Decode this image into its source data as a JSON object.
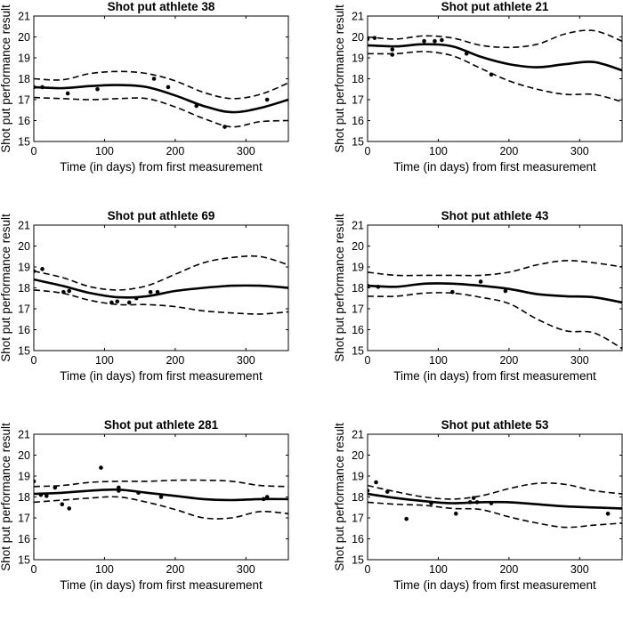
{
  "figure": {
    "layout": "3 rows x 2 columns",
    "colors": {
      "line": "#000000",
      "background": "#ffffff"
    }
  },
  "chart_data": [
    {
      "type": "line",
      "title": "Shot put athlete 38",
      "xlabel": "Time (in days) from first measurement",
      "ylabel": "Shot put performance result",
      "xlim": [
        0,
        360
      ],
      "ylim": [
        15,
        21
      ],
      "xticks": [
        0,
        100,
        200,
        300
      ],
      "yticks": [
        15,
        16,
        17,
        18,
        19,
        20,
        21
      ],
      "x": [
        0,
        40,
        80,
        120,
        160,
        200,
        240,
        280,
        320,
        360
      ],
      "series": [
        {
          "name": "mean",
          "style": "solid",
          "values": [
            17.6,
            17.55,
            17.65,
            17.7,
            17.6,
            17.2,
            16.7,
            16.4,
            16.6,
            17.0
          ]
        },
        {
          "name": "upper",
          "style": "dashed",
          "values": [
            18.0,
            17.95,
            18.25,
            18.35,
            18.25,
            17.9,
            17.35,
            17.05,
            17.25,
            17.8
          ]
        },
        {
          "name": "lower",
          "style": "dashed",
          "values": [
            17.1,
            17.05,
            17.0,
            17.05,
            17.05,
            16.65,
            16.1,
            15.7,
            15.95,
            16.0
          ]
        }
      ],
      "points": [
        [
          0,
          17.6
        ],
        [
          12,
          17.6
        ],
        [
          48,
          17.3
        ],
        [
          90,
          17.5
        ],
        [
          170,
          18.0
        ],
        [
          190,
          17.6
        ],
        [
          230,
          16.7
        ],
        [
          270,
          15.7
        ],
        [
          330,
          17.0
        ]
      ]
    },
    {
      "type": "line",
      "title": "Shot put athlete 21",
      "xlabel": "Time (in days) from first measurement",
      "ylabel": "Shot put performance result",
      "xlim": [
        0,
        360
      ],
      "ylim": [
        15,
        21
      ],
      "xticks": [
        0,
        100,
        200,
        300
      ],
      "yticks": [
        15,
        16,
        17,
        18,
        19,
        20,
        21
      ],
      "x": [
        0,
        40,
        80,
        120,
        160,
        200,
        240,
        280,
        320,
        360
      ],
      "series": [
        {
          "name": "mean",
          "style": "solid",
          "values": [
            19.6,
            19.55,
            19.65,
            19.55,
            19.05,
            18.7,
            18.55,
            18.7,
            18.8,
            18.4
          ]
        },
        {
          "name": "upper",
          "style": "dashed",
          "values": [
            20.0,
            19.9,
            20.05,
            19.95,
            19.6,
            19.5,
            19.65,
            20.15,
            20.3,
            19.8
          ]
        },
        {
          "name": "lower",
          "style": "dashed",
          "values": [
            19.2,
            19.2,
            19.3,
            19.1,
            18.5,
            17.9,
            17.5,
            17.25,
            17.25,
            16.9
          ]
        }
      ],
      "points": [
        [
          0,
          19.9
        ],
        [
          10,
          19.95
        ],
        [
          35,
          19.4
        ],
        [
          35,
          19.15
        ],
        [
          80,
          19.8
        ],
        [
          95,
          19.8
        ],
        [
          105,
          19.85
        ],
        [
          140,
          19.2
        ],
        [
          175,
          18.2
        ]
      ]
    },
    {
      "type": "line",
      "title": "Shot put athlete 69",
      "xlabel": "Time (in days) from first measurement",
      "ylabel": "Shot put performance result",
      "xlim": [
        0,
        360
      ],
      "ylim": [
        15,
        21
      ],
      "xticks": [
        0,
        100,
        200,
        300
      ],
      "yticks": [
        15,
        16,
        17,
        18,
        19,
        20,
        21
      ],
      "x": [
        0,
        40,
        80,
        120,
        160,
        200,
        240,
        280,
        320,
        360
      ],
      "series": [
        {
          "name": "mean",
          "style": "solid",
          "values": [
            18.4,
            18.1,
            17.75,
            17.55,
            17.6,
            17.85,
            18.0,
            18.1,
            18.1,
            18.0
          ]
        },
        {
          "name": "upper",
          "style": "dashed",
          "values": [
            18.8,
            18.5,
            18.05,
            17.9,
            18.1,
            18.65,
            19.2,
            19.45,
            19.5,
            19.1
          ]
        },
        {
          "name": "lower",
          "style": "dashed",
          "values": [
            17.9,
            17.75,
            17.4,
            17.2,
            17.2,
            17.1,
            16.9,
            16.8,
            16.75,
            16.85
          ]
        }
      ],
      "points": [
        [
          0,
          18.8
        ],
        [
          12,
          18.9
        ],
        [
          42,
          17.8
        ],
        [
          50,
          17.85
        ],
        [
          110,
          17.3
        ],
        [
          118,
          17.35
        ],
        [
          135,
          17.3
        ],
        [
          145,
          17.5
        ],
        [
          165,
          17.8
        ],
        [
          175,
          17.8
        ]
      ]
    },
    {
      "type": "line",
      "title": "Shot put athlete 43",
      "xlabel": "Time (in days) from first measurement",
      "ylabel": "Shot put performance result",
      "xlim": [
        0,
        360
      ],
      "ylim": [
        15,
        21
      ],
      "xticks": [
        0,
        100,
        200,
        300
      ],
      "yticks": [
        15,
        16,
        17,
        18,
        19,
        20,
        21
      ],
      "x": [
        0,
        40,
        80,
        120,
        160,
        200,
        240,
        280,
        320,
        360
      ],
      "series": [
        {
          "name": "mean",
          "style": "solid",
          "values": [
            18.1,
            18.05,
            18.2,
            18.2,
            18.1,
            17.95,
            17.7,
            17.6,
            17.55,
            17.3
          ]
        },
        {
          "name": "upper",
          "style": "dashed",
          "values": [
            18.75,
            18.6,
            18.6,
            18.6,
            18.6,
            18.75,
            19.1,
            19.3,
            19.2,
            19.0
          ]
        },
        {
          "name": "lower",
          "style": "dashed",
          "values": [
            17.6,
            17.6,
            17.75,
            17.75,
            17.55,
            17.25,
            16.5,
            15.95,
            15.85,
            15.1
          ]
        }
      ],
      "points": [
        [
          0,
          18.1
        ],
        [
          15,
          18.05
        ],
        [
          120,
          17.8
        ],
        [
          160,
          18.3
        ],
        [
          195,
          17.85
        ]
      ]
    },
    {
      "type": "line",
      "title": "Shot put athlete 281",
      "xlabel": "Time (in days) from first measurement",
      "ylabel": "Shot put performance result",
      "xlim": [
        0,
        360
      ],
      "ylim": [
        15,
        21
      ],
      "xticks": [
        0,
        100,
        200,
        300
      ],
      "yticks": [
        15,
        16,
        17,
        18,
        19,
        20,
        21
      ],
      "x": [
        0,
        40,
        80,
        120,
        160,
        200,
        240,
        280,
        320,
        360
      ],
      "series": [
        {
          "name": "mean",
          "style": "solid",
          "values": [
            18.15,
            18.2,
            18.3,
            18.35,
            18.2,
            18.05,
            17.9,
            17.85,
            17.9,
            17.9
          ]
        },
        {
          "name": "upper",
          "style": "dashed",
          "values": [
            18.5,
            18.55,
            18.7,
            18.75,
            18.75,
            18.8,
            18.8,
            18.75,
            18.55,
            18.5
          ]
        },
        {
          "name": "lower",
          "style": "dashed",
          "values": [
            17.75,
            17.85,
            17.95,
            18.0,
            17.75,
            17.4,
            17.0,
            17.0,
            17.3,
            17.2
          ]
        }
      ],
      "points": [
        [
          0,
          18.75
        ],
        [
          10,
          18.1
        ],
        [
          18,
          18.05
        ],
        [
          30,
          18.45
        ],
        [
          40,
          17.65
        ],
        [
          50,
          17.45
        ],
        [
          95,
          19.4
        ],
        [
          120,
          18.45
        ],
        [
          120,
          18.3
        ],
        [
          148,
          18.2
        ],
        [
          180,
          18.0
        ],
        [
          325,
          17.9
        ],
        [
          330,
          18.0
        ]
      ]
    },
    {
      "type": "line",
      "title": "Shot put athlete 53",
      "xlabel": "Time (in days) from first measurement",
      "ylabel": "Shot put performance result",
      "xlim": [
        0,
        360
      ],
      "ylim": [
        15,
        21
      ],
      "xticks": [
        0,
        100,
        200,
        300
      ],
      "yticks": [
        15,
        16,
        17,
        18,
        19,
        20,
        21
      ],
      "x": [
        0,
        40,
        80,
        120,
        160,
        200,
        240,
        280,
        320,
        360
      ],
      "series": [
        {
          "name": "mean",
          "style": "solid",
          "values": [
            18.15,
            17.95,
            17.8,
            17.7,
            17.75,
            17.75,
            17.65,
            17.55,
            17.5,
            17.45
          ]
        },
        {
          "name": "upper",
          "style": "dashed",
          "values": [
            18.55,
            18.25,
            18.0,
            17.9,
            18.05,
            18.4,
            18.65,
            18.6,
            18.3,
            18.15
          ]
        },
        {
          "name": "lower",
          "style": "dashed",
          "values": [
            17.75,
            17.65,
            17.6,
            17.45,
            17.4,
            17.05,
            16.75,
            16.55,
            16.65,
            16.75
          ]
        }
      ],
      "points": [
        [
          0,
          18.3
        ],
        [
          12,
          18.7
        ],
        [
          28,
          18.25
        ],
        [
          55,
          16.95
        ],
        [
          90,
          17.7
        ],
        [
          125,
          17.2
        ],
        [
          145,
          17.75
        ],
        [
          150,
          17.95
        ],
        [
          155,
          17.75
        ],
        [
          175,
          17.7
        ],
        [
          340,
          17.2
        ]
      ]
    }
  ]
}
